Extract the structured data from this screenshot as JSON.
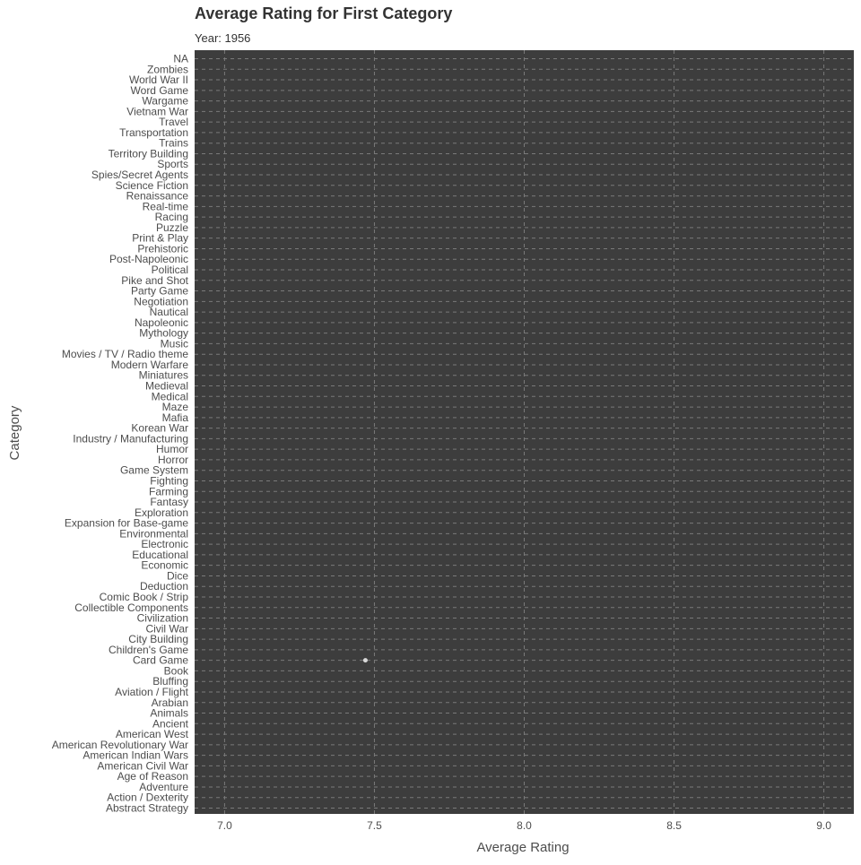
{
  "chart_data": {
    "type": "scatter",
    "title": "Average Rating for First Category",
    "subtitle": "Year: 1956",
    "xlabel": "Average Rating",
    "ylabel": "Category",
    "xlim": [
      6.9,
      9.1
    ],
    "xticks": [
      7.0,
      7.5,
      8.0,
      8.5,
      9.0
    ],
    "xtick_labels": [
      "7.0",
      "7.5",
      "8.0",
      "8.5",
      "9.0"
    ],
    "grid": true,
    "panel_color": "#3d3d3d",
    "grid_color": "#7a7a7a",
    "point_color": "#d9d9d9",
    "text_color": "#4d4d4d",
    "categories": [
      "Abstract Strategy",
      "Action / Dexterity",
      "Adventure",
      "Age of Reason",
      "American Civil War",
      "American Indian Wars",
      "American Revolutionary War",
      "American West",
      "Ancient",
      "Animals",
      "Arabian",
      "Aviation / Flight",
      "Bluffing",
      "Book",
      "Card Game",
      "Children's Game",
      "City Building",
      "Civil War",
      "Civilization",
      "Collectible Components",
      "Comic Book / Strip",
      "Deduction",
      "Dice",
      "Economic",
      "Educational",
      "Electronic",
      "Environmental",
      "Expansion for Base-game",
      "Exploration",
      "Fantasy",
      "Farming",
      "Fighting",
      "Game System",
      "Horror",
      "Humor",
      "Industry / Manufacturing",
      "Korean War",
      "Mafia",
      "Maze",
      "Medical",
      "Medieval",
      "Miniatures",
      "Modern Warfare",
      "Movies / TV / Radio theme",
      "Music",
      "Mythology",
      "Napoleonic",
      "Nautical",
      "Negotiation",
      "Party Game",
      "Pike and Shot",
      "Political",
      "Post-Napoleonic",
      "Prehistoric",
      "Print & Play",
      "Puzzle",
      "Racing",
      "Real-time",
      "Renaissance",
      "Science Fiction",
      "Spies/Secret Agents",
      "Sports",
      "Territory Building",
      "Trains",
      "Transportation",
      "Travel",
      "Vietnam War",
      "Wargame",
      "Word Game",
      "World War II",
      "Zombies",
      "NA"
    ],
    "points": [
      {
        "category": "Card Game",
        "x": 7.47
      }
    ]
  }
}
